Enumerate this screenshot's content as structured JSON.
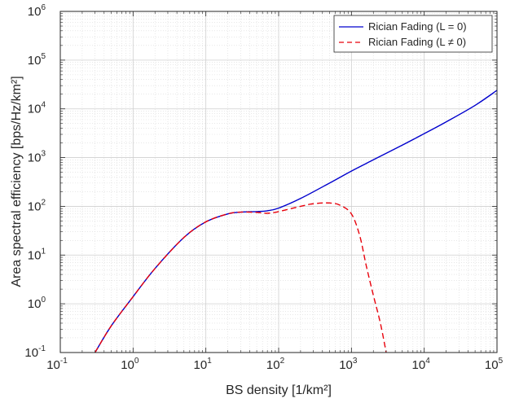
{
  "chart_data": {
    "type": "line",
    "xlabel": "BS density [1/km²]",
    "ylabel": "Area spectral efficiency [bps/Hz/km²]",
    "x_scale": "log",
    "y_scale": "log",
    "xlim": [
      0.1,
      100000
    ],
    "ylim": [
      0.1,
      1000000
    ],
    "x_ticks": [
      {
        "base": "10",
        "exp": "-1"
      },
      {
        "base": "10",
        "exp": "0"
      },
      {
        "base": "10",
        "exp": "1"
      },
      {
        "base": "10",
        "exp": "2"
      },
      {
        "base": "10",
        "exp": "3"
      },
      {
        "base": "10",
        "exp": "4"
      },
      {
        "base": "10",
        "exp": "5"
      }
    ],
    "y_ticks": [
      {
        "base": "10",
        "exp": "-1"
      },
      {
        "base": "10",
        "exp": "0"
      },
      {
        "base": "10",
        "exp": "1"
      },
      {
        "base": "10",
        "exp": "2"
      },
      {
        "base": "10",
        "exp": "3"
      },
      {
        "base": "10",
        "exp": "4"
      },
      {
        "base": "10",
        "exp": "5"
      },
      {
        "base": "10",
        "exp": "6"
      }
    ],
    "grid": true,
    "minor_grid": true,
    "legend_position": "top-right",
    "series": [
      {
        "name": "Rician Fading (L = 0)",
        "color": "#0000cd",
        "style": "solid",
        "x": [
          0.3,
          0.5,
          1,
          2,
          5,
          10,
          20,
          30,
          50,
          70,
          100,
          200,
          500,
          1000,
          2000,
          5000,
          10000,
          20000,
          50000,
          100000
        ],
        "y": [
          0.1,
          0.35,
          1.4,
          5.3,
          23,
          48,
          70,
          76,
          78,
          81,
          92,
          145,
          300,
          530,
          900,
          1800,
          3100,
          5400,
          11800,
          24000
        ]
      },
      {
        "name": "Rician Fading (L ≠ 0)",
        "color": "#e8000b",
        "style": "dashed",
        "x": [
          0.3,
          0.5,
          1,
          2,
          5,
          10,
          20,
          30,
          50,
          70,
          100,
          200,
          300,
          500,
          700,
          1000,
          1300,
          1600,
          2000,
          2500,
          3000
        ],
        "y": [
          0.1,
          0.35,
          1.4,
          5.3,
          23,
          48,
          70,
          76,
          75,
          72,
          78,
          100,
          113,
          117,
          105,
          70,
          25,
          6,
          1.5,
          0.4,
          0.1
        ]
      }
    ]
  }
}
